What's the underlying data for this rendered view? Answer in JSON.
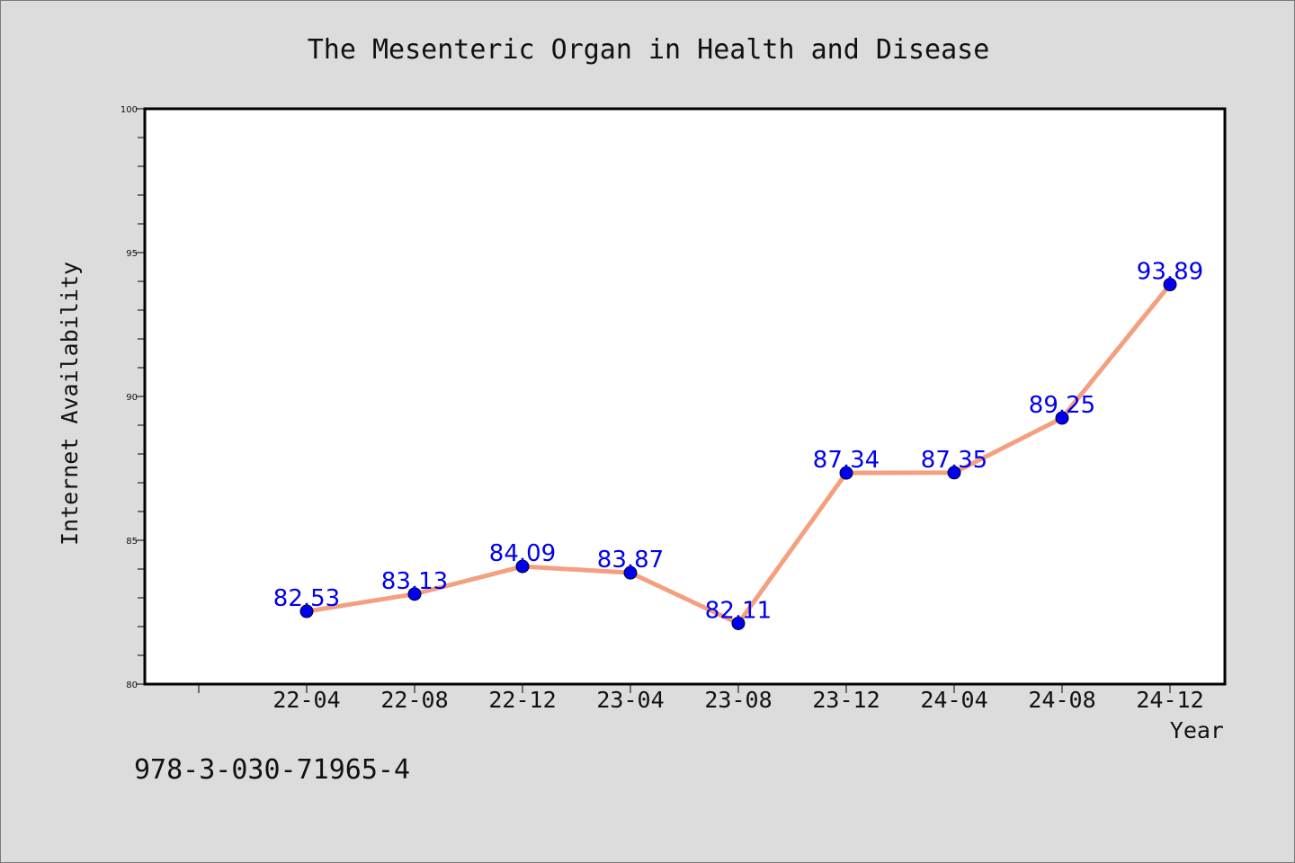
{
  "footer": {
    "code": "978-3-030-71965-4"
  },
  "chart_data": {
    "type": "line",
    "title": "The Mesenteric Organ in Health and Disease",
    "xlabel": "Year",
    "ylabel": "Internet Availability",
    "categories": [
      "22-04",
      "22-08",
      "22-12",
      "23-04",
      "23-08",
      "23-12",
      "24-04",
      "24-08",
      "24-12"
    ],
    "series": [
      {
        "values": [
          82.53,
          83.13,
          84.09,
          83.87,
          82.11,
          87.34,
          87.35,
          89.25,
          93.89
        ],
        "labels": [
          "82.53",
          "83.13",
          "84.09",
          "83.87",
          "82.11",
          "87.34",
          "87.35",
          "89.25",
          "93.89"
        ],
        "line_color": "#f4a080",
        "marker_color": "#0000ee",
        "label_color": "#0000ee"
      }
    ],
    "ylim": [
      80,
      100
    ],
    "yticks": [
      "80",
      "85",
      "90",
      "95",
      "100"
    ],
    "grid": false,
    "legend": "none"
  }
}
